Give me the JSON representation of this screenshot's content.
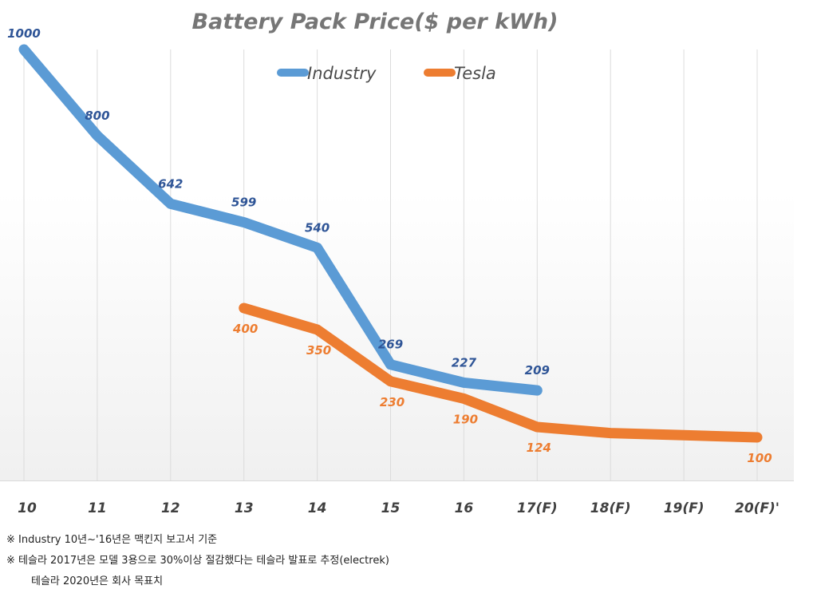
{
  "chart_data": {
    "type": "line",
    "title": "Battery Pack Price($ per kWh)",
    "xlabel": "",
    "ylabel": "",
    "categories": [
      "10",
      "11",
      "12",
      "13",
      "14",
      "15",
      "16",
      "17(F)",
      "18(F)",
      "19(F)",
      "20(F)'"
    ],
    "ylim": [
      0,
      1000
    ],
    "grid": "vertical",
    "legend_position": "top-center",
    "series": [
      {
        "name": "Industry",
        "color": "#5b9bd5",
        "label_color": "#2f5597",
        "values": [
          1000,
          800,
          642,
          599,
          540,
          269,
          227,
          209,
          null,
          null,
          null
        ],
        "labels": [
          "1000",
          "800",
          "642",
          "599",
          "540",
          "269",
          "227",
          "209",
          null,
          null,
          null
        ]
      },
      {
        "name": "Tesla",
        "color": "#ed7d31",
        "label_color": "#ed7d31",
        "values": [
          null,
          null,
          null,
          400,
          350,
          230,
          190,
          124,
          110,
          105,
          100
        ],
        "labels": [
          null,
          null,
          null,
          "400",
          "350",
          "230",
          "190",
          "124",
          null,
          null,
          "100"
        ]
      }
    ]
  },
  "notes": [
    "※ Industry 10년~'16년은 맥킨지 보고서 기준",
    "※ 테슬라 2017년은 모델 3용으로 30%이상 절감했다는 테슬라 발표로 추정(electrek)",
    "테슬라 2020년은 회사 목표치"
  ]
}
